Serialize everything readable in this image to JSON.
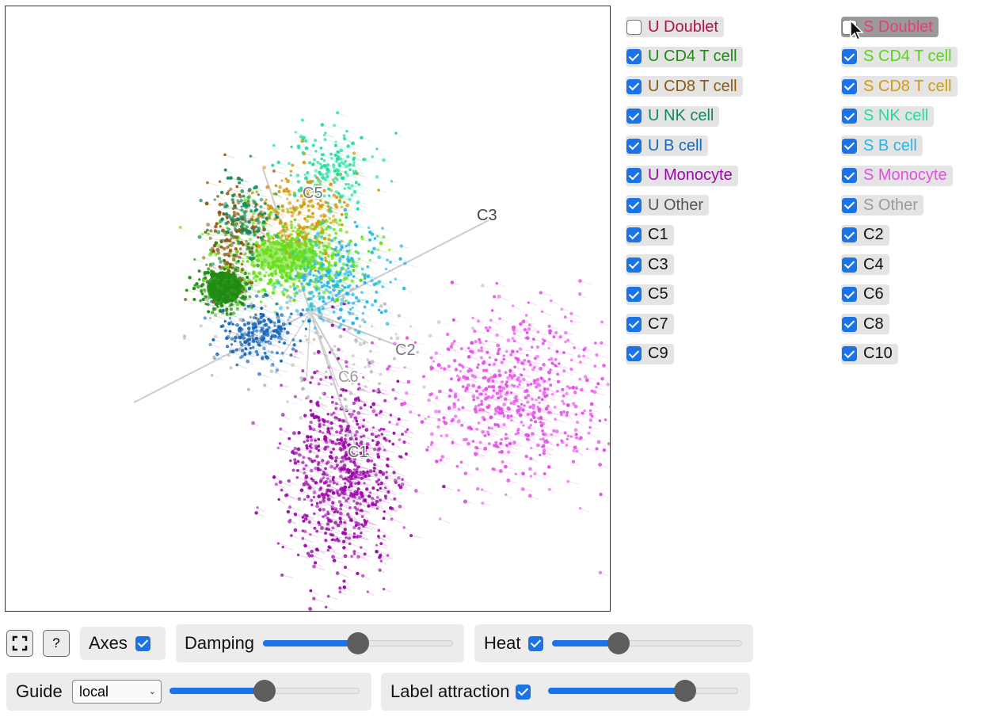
{
  "legend": [
    {
      "label": "U Doublet",
      "color": "#b0134a",
      "checked": false,
      "dim": false
    },
    {
      "label": "S Doublet",
      "color": "#e83e72",
      "checked": false,
      "dim": true
    },
    {
      "label": "U CD4 T cell",
      "color": "#1e8b12",
      "checked": true,
      "dim": false
    },
    {
      "label": "S CD4 T cell",
      "color": "#57d615",
      "checked": true,
      "dim": false
    },
    {
      "label": "U CD8 T cell",
      "color": "#8b5a10",
      "checked": true,
      "dim": false
    },
    {
      "label": "S CD8 T cell",
      "color": "#d39a10",
      "checked": true,
      "dim": false
    },
    {
      "label": "U NK cell",
      "color": "#118a5a",
      "checked": true,
      "dim": false
    },
    {
      "label": "S NK cell",
      "color": "#22dca0",
      "checked": true,
      "dim": false
    },
    {
      "label": "U B cell",
      "color": "#1766b8",
      "checked": true,
      "dim": false
    },
    {
      "label": "S B cell",
      "color": "#22b6ea",
      "checked": true,
      "dim": false
    },
    {
      "label": "U Monocyte",
      "color": "#9b0aa8",
      "checked": true,
      "dim": false
    },
    {
      "label": "S Monocyte",
      "color": "#e24ee6",
      "checked": true,
      "dim": false
    },
    {
      "label": "U Other",
      "color": "#555555",
      "checked": true,
      "dim": false
    },
    {
      "label": "S Other",
      "color": "#9a9a9a",
      "checked": true,
      "dim": false
    },
    {
      "label": "C1",
      "color": "#111111",
      "checked": true,
      "dim": false
    },
    {
      "label": "C2",
      "color": "#111111",
      "checked": true,
      "dim": false
    },
    {
      "label": "C3",
      "color": "#111111",
      "checked": true,
      "dim": false
    },
    {
      "label": "C4",
      "color": "#111111",
      "checked": true,
      "dim": false
    },
    {
      "label": "C5",
      "color": "#111111",
      "checked": true,
      "dim": false
    },
    {
      "label": "C6",
      "color": "#111111",
      "checked": true,
      "dim": false
    },
    {
      "label": "C7",
      "color": "#111111",
      "checked": true,
      "dim": false
    },
    {
      "label": "C8",
      "color": "#111111",
      "checked": true,
      "dim": false
    },
    {
      "label": "C9",
      "color": "#111111",
      "checked": true,
      "dim": false
    },
    {
      "label": "C10",
      "color": "#111111",
      "checked": true,
      "dim": false
    }
  ],
  "axis_labels": {
    "c1": "C1",
    "c2": "C2",
    "c3": "C3",
    "c5": "C5",
    "c6": "C6"
  },
  "controls": {
    "fullscreen_icon": "fullscreen-icon",
    "help_label": "?",
    "axes_label": "Axes",
    "axes_checked": true,
    "damping_label": "Damping",
    "damping_value": 0.5,
    "heat_label": "Heat",
    "heat_checked": true,
    "heat_value": 0.35,
    "guide_label": "Guide",
    "guide_value": "local",
    "guide_slider_value": 0.5,
    "label_attraction_label": "Label attraction",
    "label_attraction_checked": true,
    "label_attraction_value": 0.72
  },
  "clusters": [
    {
      "name": "U CD4 T cell",
      "color": "#1e8b12",
      "cx": 275,
      "cy": 355,
      "sx": 16,
      "sy": 14,
      "n": 320
    },
    {
      "name": "S CD4 T cell",
      "color": "#66e01a",
      "cx": 360,
      "cy": 318,
      "sx": 42,
      "sy": 26,
      "n": 560
    },
    {
      "name": "U CD8 T cell",
      "color": "#8b5a10",
      "cx": 288,
      "cy": 290,
      "sx": 18,
      "sy": 38,
      "n": 160
    },
    {
      "name": "S CD8 T cell",
      "color": "#d39a10",
      "cx": 372,
      "cy": 262,
      "sx": 30,
      "sy": 30,
      "n": 220
    },
    {
      "name": "U NK cell",
      "color": "#118a5a",
      "cx": 298,
      "cy": 268,
      "sx": 18,
      "sy": 26,
      "n": 120
    },
    {
      "name": "S NK cell",
      "color": "#22dca0",
      "cx": 410,
      "cy": 205,
      "sx": 26,
      "sy": 26,
      "n": 170
    },
    {
      "name": "U B cell",
      "color": "#1766b8",
      "cx": 318,
      "cy": 412,
      "sx": 24,
      "sy": 20,
      "n": 200
    },
    {
      "name": "S B cell",
      "color": "#22b6ea",
      "cx": 422,
      "cy": 345,
      "sx": 34,
      "sy": 30,
      "n": 240
    },
    {
      "name": "U Monocyte",
      "color": "#9b0aa8",
      "cx": 425,
      "cy": 585,
      "sx": 36,
      "sy": 62,
      "n": 700
    },
    {
      "name": "S Monocyte",
      "color": "#e24ee6",
      "cx": 640,
      "cy": 492,
      "sx": 58,
      "sy": 52,
      "n": 620
    },
    {
      "name": "S Other",
      "color": "#bdbdbd",
      "cx": 390,
      "cy": 420,
      "sx": 70,
      "sy": 50,
      "n": 120
    }
  ]
}
